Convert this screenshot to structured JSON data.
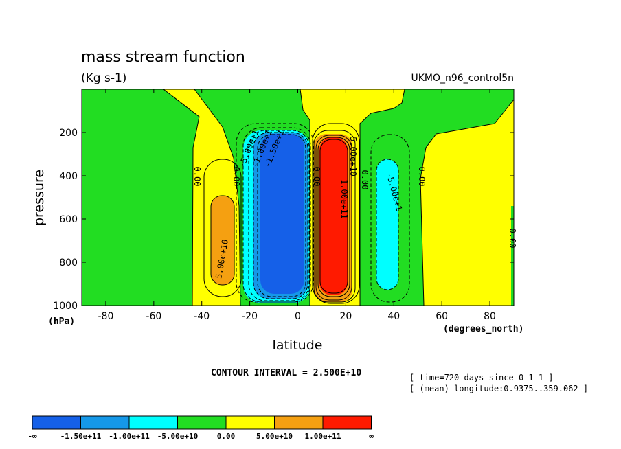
{
  "chart_data": {
    "type": "heatmap",
    "subtype": "filled-contour",
    "title": "mass stream function",
    "units": "(Kg s-1)",
    "dataset": "UKMO_n96_control5n",
    "xlabel": "latitude",
    "x_unit": "(degrees_north)",
    "ylabel": "pressure",
    "y_unit": "(hPa)",
    "xlim": [
      -90,
      90
    ],
    "ylim": [
      1000,
      0
    ],
    "x_ticks": [
      "-80",
      "-60",
      "-40",
      "-20",
      "0",
      "20",
      "40",
      "60",
      "80"
    ],
    "y_ticks": [
      "200",
      "400",
      "600",
      "800",
      "1000"
    ],
    "contour_interval_text": "CONTOUR INTERVAL = 2.500E+10",
    "info_lines": [
      "[ time=720 days since 0-1-1 ]",
      "[ (mean) longitude:0.9375..359.062 ]"
    ],
    "contour_labels": [
      "0.00",
      "0.00",
      "0.00",
      "0.00",
      "0.00",
      "5.00e+10",
      "-5.00e+1",
      "-1.00e+1",
      "-1.50e+1",
      "5.00e+10",
      "1.00e+11",
      "-5.00e+1"
    ],
    "colorbar": {
      "levels": [
        "-∞",
        "-1.50e+11",
        "-1.00e+11",
        "-5.00e+10",
        "0.00",
        "5.00e+10",
        "1.00e+11",
        "∞"
      ],
      "colors": [
        "#1560e8",
        "#1598e8",
        "#00ffff",
        "#22dd22",
        "#ffff00",
        "#f5a011",
        "#ff1a00"
      ]
    },
    "features": [
      {
        "name": "southern Hadley cell",
        "sign": "negative",
        "lat_range": [
          -25,
          8
        ],
        "p_range": [
          190,
          1000
        ],
        "min_level": "-1.50e+11"
      },
      {
        "name": "northern Hadley cell",
        "sign": "positive",
        "lat_range": [
          8,
          28
        ],
        "p_range": [
          190,
          1000
        ],
        "max_level": "1.00e+11"
      },
      {
        "name": "southern Ferrel cell",
        "sign": "positive",
        "lat_range": [
          -50,
          -22
        ],
        "p_range": [
          300,
          1000
        ],
        "max_level": "5.00e+10"
      },
      {
        "name": "northern Ferrel cell",
        "sign": "negative",
        "lat_range": [
          30,
          55
        ],
        "p_range": [
          210,
          1000
        ],
        "min_level": "-5.00e+10"
      }
    ]
  }
}
